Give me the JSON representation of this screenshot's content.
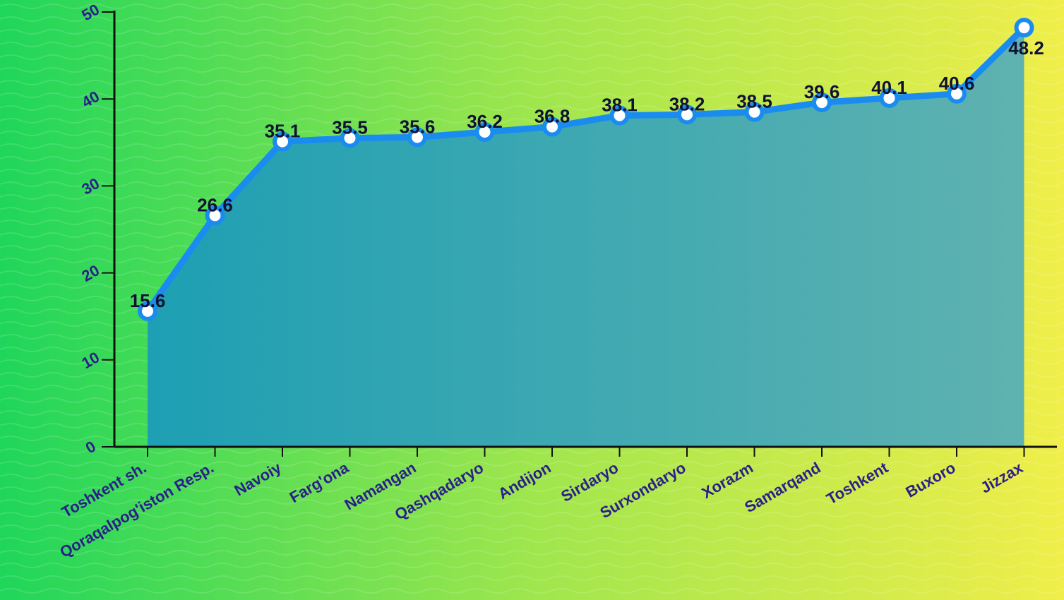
{
  "chart_data": {
    "type": "area",
    "categories": [
      "Toshkent sh.",
      "Qoraqalpog'iston Resp.",
      "Navoiy",
      "Farg'ona",
      "Namangan",
      "Qashqadaryo",
      "Andijon",
      "Sirdaryo",
      "Surxondaryo",
      "Xorazm",
      "Samarqand",
      "Toshkent",
      "Buxoro",
      "Jizzax"
    ],
    "values": [
      15.6,
      26.6,
      35.1,
      35.5,
      35.6,
      36.2,
      36.8,
      38.1,
      38.2,
      38.5,
      39.6,
      40.1,
      40.6,
      48.2
    ],
    "data_labels": [
      "15.6",
      "26.6",
      "35.1",
      "35.5",
      "35.6",
      "36.2",
      "36.8",
      "38.1",
      "38.2",
      "38.5",
      "39.6",
      "40.1",
      "40.6",
      "48.2"
    ],
    "yticks": [
      "0",
      "10",
      "20",
      "30",
      "40",
      "50"
    ],
    "ylim": [
      0,
      50
    ],
    "title": "",
    "xlabel": "",
    "ylabel": "",
    "grid": false,
    "legend": "none",
    "colors": {
      "background_left": "#1fd65a",
      "background_mid": "#a8e84a",
      "background_right": "#eeee4a",
      "line": "#1a8cf0",
      "area_top": "#1e9fb0",
      "area_bottom": "#22a9b5",
      "marker_fill": "#ffffff",
      "data_label": "#111133",
      "axis_label": "#2a1f8a",
      "axis_line": "#111111"
    }
  }
}
